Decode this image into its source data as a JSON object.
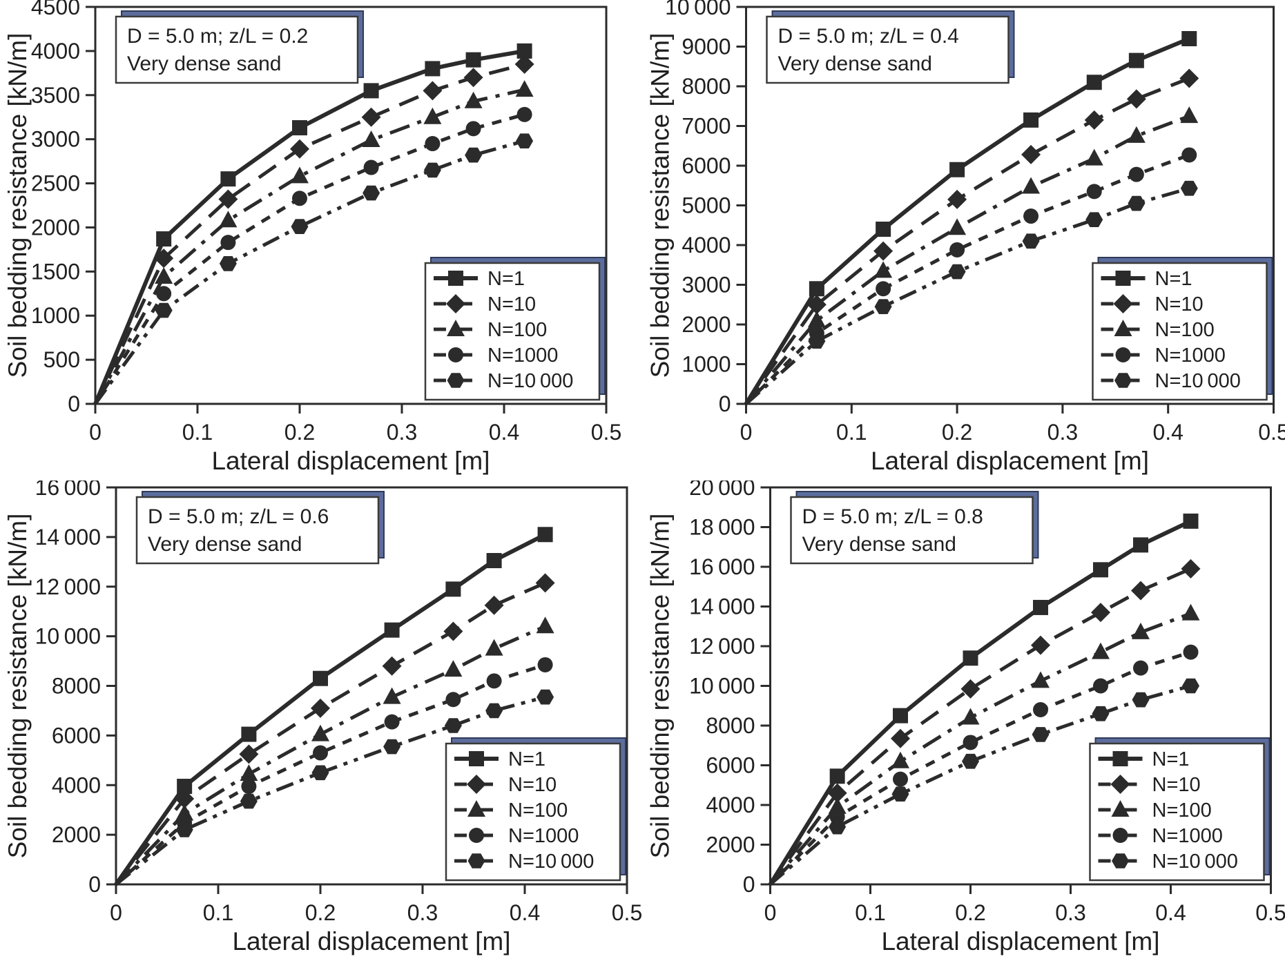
{
  "colors": {
    "line": "#2b2b2b",
    "frame": "#2b2b2b",
    "text": "#1f1f1f",
    "box_bg": "#ffffff",
    "box_border": "#3a3a3a",
    "shadow_fill": "#5c6d9d",
    "shadow_border": "#2e3a58"
  },
  "chart_data": [
    {
      "type": "line",
      "position": "top-left",
      "annotation_line1": "D = 5.0 m; z/L = 0.2",
      "annotation_line2": "Very dense sand",
      "xlabel": "Lateral displacement [m]",
      "ylabel": "Soil bedding resistance [kN/m]",
      "xlim": [
        0,
        0.5
      ],
      "xtick_step": 0.1,
      "ylim": [
        0,
        4500
      ],
      "ytick_step": 500,
      "grid": false,
      "legend_position": "bottom-right",
      "x": [
        0,
        0.067,
        0.13,
        0.2,
        0.27,
        0.33,
        0.37,
        0.42
      ],
      "series": [
        {
          "name": "N=1",
          "marker": "square",
          "dash": "solid",
          "values": [
            0,
            1870,
            2550,
            3130,
            3550,
            3800,
            3900,
            4000
          ]
        },
        {
          "name": "N=10",
          "marker": "diamond",
          "dash": "long-dash",
          "values": [
            0,
            1650,
            2320,
            2890,
            3250,
            3550,
            3700,
            3850
          ]
        },
        {
          "name": "N=100",
          "marker": "triangle",
          "dash": "dash-dot",
          "values": [
            0,
            1440,
            2080,
            2580,
            2990,
            3250,
            3430,
            3560
          ]
        },
        {
          "name": "N=1000",
          "marker": "circle",
          "dash": "short-dash",
          "values": [
            0,
            1250,
            1830,
            2330,
            2680,
            2950,
            3120,
            3280
          ]
        },
        {
          "name": "N=10 000",
          "marker": "hexagon",
          "dash": "dash-dot-dot",
          "values": [
            0,
            1060,
            1590,
            2010,
            2390,
            2650,
            2820,
            2980
          ]
        }
      ]
    },
    {
      "type": "line",
      "position": "top-right",
      "annotation_line1": "D = 5.0 m; z/L = 0.4",
      "annotation_line2": "Very dense sand",
      "xlabel": "Lateral displacement [m]",
      "ylabel": "Soil bedding resistance [kN/m]",
      "xlim": [
        0,
        0.5
      ],
      "xtick_step": 0.1,
      "ylim": [
        0,
        10000
      ],
      "ytick_step": 1000,
      "grid": false,
      "legend_position": "bottom-right",
      "x": [
        0,
        0.067,
        0.13,
        0.2,
        0.27,
        0.33,
        0.37,
        0.42
      ],
      "series": [
        {
          "name": "N=1",
          "marker": "square",
          "dash": "solid",
          "values": [
            0,
            2900,
            4400,
            5900,
            7150,
            8100,
            8650,
            9200
          ]
        },
        {
          "name": "N=10",
          "marker": "diamond",
          "dash": "long-dash",
          "values": [
            0,
            2500,
            3850,
            5150,
            6280,
            7150,
            7680,
            8200
          ]
        },
        {
          "name": "N=100",
          "marker": "triangle",
          "dash": "dash-dot",
          "values": [
            0,
            2100,
            3350,
            4430,
            5470,
            6180,
            6750,
            7250
          ]
        },
        {
          "name": "N=1000",
          "marker": "circle",
          "dash": "short-dash",
          "values": [
            0,
            1780,
            2900,
            3880,
            4730,
            5350,
            5780,
            6270
          ]
        },
        {
          "name": "N=10 000",
          "marker": "hexagon",
          "dash": "dash-dot-dot",
          "values": [
            0,
            1580,
            2450,
            3330,
            4100,
            4640,
            5050,
            5430
          ]
        }
      ]
    },
    {
      "type": "line",
      "position": "bottom-left",
      "annotation_line1": "D = 5.0 m; z/L = 0.6",
      "annotation_line2": "Very dense sand",
      "xlabel": "Lateral displacement [m]",
      "ylabel": "Soil bedding resistance [kN/m]",
      "xlim": [
        0,
        0.5
      ],
      "xtick_step": 0.1,
      "ylim": [
        0,
        16000
      ],
      "ytick_step": 2000,
      "grid": false,
      "legend_position": "bottom-right",
      "x": [
        0,
        0.067,
        0.13,
        0.2,
        0.27,
        0.33,
        0.37,
        0.42
      ],
      "series": [
        {
          "name": "N=1",
          "marker": "square",
          "dash": "solid",
          "values": [
            0,
            3950,
            6050,
            8300,
            10250,
            11900,
            13050,
            14100
          ]
        },
        {
          "name": "N=10",
          "marker": "diamond",
          "dash": "long-dash",
          "values": [
            0,
            3450,
            5250,
            7100,
            8800,
            10200,
            11250,
            12150
          ]
        },
        {
          "name": "N=100",
          "marker": "triangle",
          "dash": "dash-dot",
          "values": [
            0,
            2850,
            4450,
            6050,
            7550,
            8650,
            9500,
            10400
          ]
        },
        {
          "name": "N=1000",
          "marker": "circle",
          "dash": "short-dash",
          "values": [
            0,
            2480,
            3950,
            5300,
            6550,
            7450,
            8200,
            8850
          ]
        },
        {
          "name": "N=10 000",
          "marker": "hexagon",
          "dash": "dash-dot-dot",
          "values": [
            0,
            2200,
            3350,
            4500,
            5550,
            6400,
            7000,
            7550
          ]
        }
      ]
    },
    {
      "type": "line",
      "position": "bottom-right",
      "annotation_line1": "D = 5.0 m; z/L = 0.8",
      "annotation_line2": "Very dense sand",
      "xlabel": "Lateral displacement [m]",
      "ylabel": "Soil bedding resistance [kN/m]",
      "xlim": [
        0,
        0.5
      ],
      "xtick_step": 0.1,
      "ylim": [
        0,
        20000
      ],
      "ytick_step": 2000,
      "grid": false,
      "legend_position": "bottom-right",
      "x": [
        0,
        0.067,
        0.13,
        0.2,
        0.27,
        0.33,
        0.37,
        0.42
      ],
      "series": [
        {
          "name": "N=1",
          "marker": "square",
          "dash": "solid",
          "values": [
            0,
            5450,
            8500,
            11400,
            13950,
            15850,
            17100,
            18300
          ]
        },
        {
          "name": "N=10",
          "marker": "diamond",
          "dash": "long-dash",
          "values": [
            0,
            4600,
            7350,
            9850,
            12050,
            13700,
            14800,
            15900
          ]
        },
        {
          "name": "N=100",
          "marker": "triangle",
          "dash": "dash-dot",
          "values": [
            0,
            3900,
            6200,
            8400,
            10250,
            11700,
            12700,
            13650
          ]
        },
        {
          "name": "N=1000",
          "marker": "circle",
          "dash": "short-dash",
          "values": [
            0,
            3400,
            5300,
            7150,
            8800,
            10000,
            10900,
            11700
          ]
        },
        {
          "name": "N=10 000",
          "marker": "hexagon",
          "dash": "dash-dot-dot",
          "values": [
            0,
            2900,
            4550,
            6200,
            7550,
            8600,
            9300,
            10000
          ]
        }
      ]
    }
  ]
}
